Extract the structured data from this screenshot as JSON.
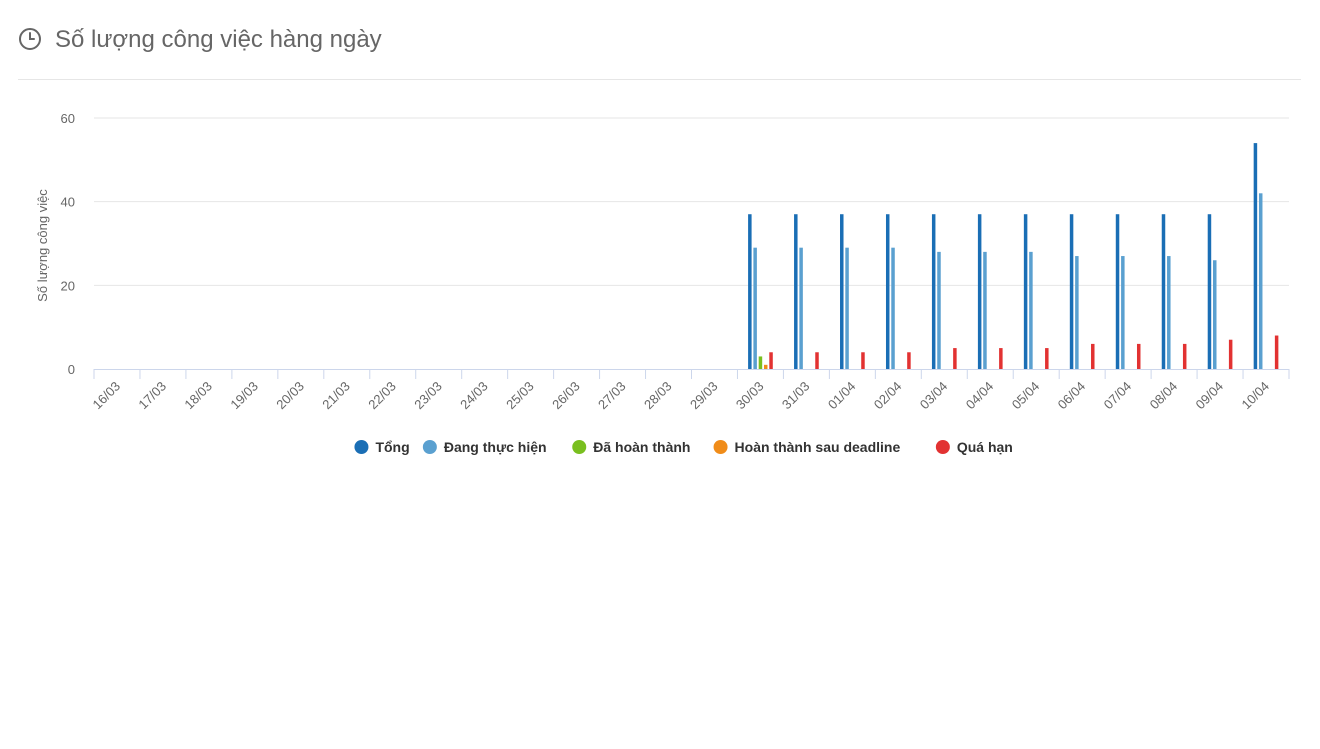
{
  "header": {
    "title": "Số lượng công việc hàng ngày",
    "icon": "clock-icon"
  },
  "chart_data": {
    "type": "bar",
    "title": "Số lượng công việc hàng ngày",
    "ylabel": "Số lượng công việc",
    "xlabel": "",
    "ylim": [
      0,
      60
    ],
    "yticks": [
      0,
      20,
      40,
      60
    ],
    "grid": true,
    "legend_position": "bottom-center",
    "categories": [
      "16/03",
      "17/03",
      "18/03",
      "19/03",
      "20/03",
      "21/03",
      "22/03",
      "23/03",
      "24/03",
      "25/03",
      "26/03",
      "27/03",
      "28/03",
      "29/03",
      "30/03",
      "31/03",
      "01/04",
      "02/04",
      "03/04",
      "04/04",
      "05/04",
      "06/04",
      "07/04",
      "08/04",
      "09/04",
      "10/04"
    ],
    "series": [
      {
        "name": "Tổng",
        "color": "#1a6eb5",
        "values": [
          0,
          0,
          0,
          0,
          0,
          0,
          0,
          0,
          0,
          0,
          0,
          0,
          0,
          0,
          37,
          37,
          37,
          37,
          37,
          37,
          37,
          37,
          37,
          37,
          37,
          54
        ]
      },
      {
        "name": "Đang thực hiện",
        "color": "#5aa0d0",
        "values": [
          0,
          0,
          0,
          0,
          0,
          0,
          0,
          0,
          0,
          0,
          0,
          0,
          0,
          0,
          29,
          29,
          29,
          29,
          28,
          28,
          28,
          27,
          27,
          27,
          26,
          42
        ]
      },
      {
        "name": "Đã hoàn thành",
        "color": "#79bf1f",
        "values": [
          0,
          0,
          0,
          0,
          0,
          0,
          0,
          0,
          0,
          0,
          0,
          0,
          0,
          0,
          3,
          0,
          0,
          0,
          0,
          0,
          0,
          0,
          0,
          0,
          0,
          0
        ]
      },
      {
        "name": "Hoàn thành sau deadline",
        "color": "#f08c19",
        "values": [
          0,
          0,
          0,
          0,
          0,
          0,
          0,
          0,
          0,
          0,
          0,
          0,
          0,
          0,
          1,
          0,
          0,
          0,
          0,
          0,
          0,
          0,
          0,
          0,
          0,
          0
        ]
      },
      {
        "name": "Quá hạn",
        "color": "#e23232",
        "values": [
          0,
          0,
          0,
          0,
          0,
          0,
          0,
          0,
          0,
          0,
          0,
          0,
          0,
          0,
          4,
          4,
          4,
          4,
          5,
          5,
          5,
          6,
          6,
          6,
          7,
          8
        ]
      }
    ]
  }
}
